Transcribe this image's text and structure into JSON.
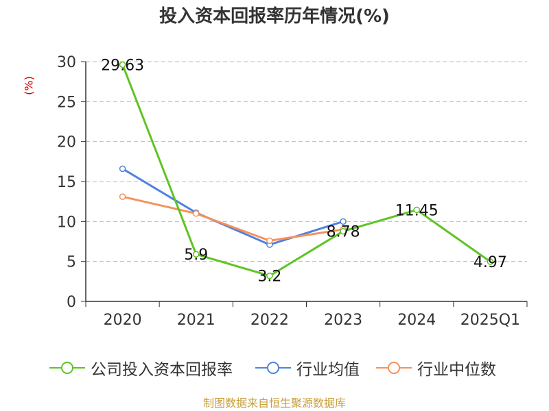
{
  "colors": {
    "company": "#5ec424",
    "industry_avg": "#4f81e0",
    "industry_median": "#f5915a",
    "unit": "#cc0000",
    "source": "#c8a03c",
    "grid": "#bbbbbb",
    "axis": "#333333"
  },
  "legend": {
    "company": "公司投入资本回报率",
    "industry_avg": "行业均值",
    "industry_median": "行业中位数"
  },
  "footer": {
    "source": "制图数据来自恒生聚源数据库"
  },
  "chart_data": {
    "type": "line",
    "title": "投入资本回报率历年情况(%)",
    "ylabel": "(%)",
    "xlabel": "",
    "categories": [
      "2020",
      "2021",
      "2022",
      "2023",
      "2024",
      "2025Q1"
    ],
    "ylim": [
      0,
      30
    ],
    "yticks": [
      0,
      5,
      10,
      15,
      20,
      25,
      30
    ],
    "grid": true,
    "legend_position": "bottom",
    "series": [
      {
        "name": "公司投入资本回报率",
        "key": "company",
        "values": [
          29.63,
          5.9,
          3.2,
          8.78,
          11.45,
          4.97
        ],
        "labels": [
          "29.63",
          "5.9",
          "3.2",
          "8.78",
          "11.45",
          "4.97"
        ]
      },
      {
        "name": "行业均值",
        "key": "industry_avg",
        "values": [
          16.6,
          11.1,
          7.1,
          10.0,
          null,
          null
        ]
      },
      {
        "name": "行业中位数",
        "key": "industry_median",
        "values": [
          13.1,
          11.0,
          7.6,
          9.0,
          null,
          null
        ]
      }
    ]
  }
}
